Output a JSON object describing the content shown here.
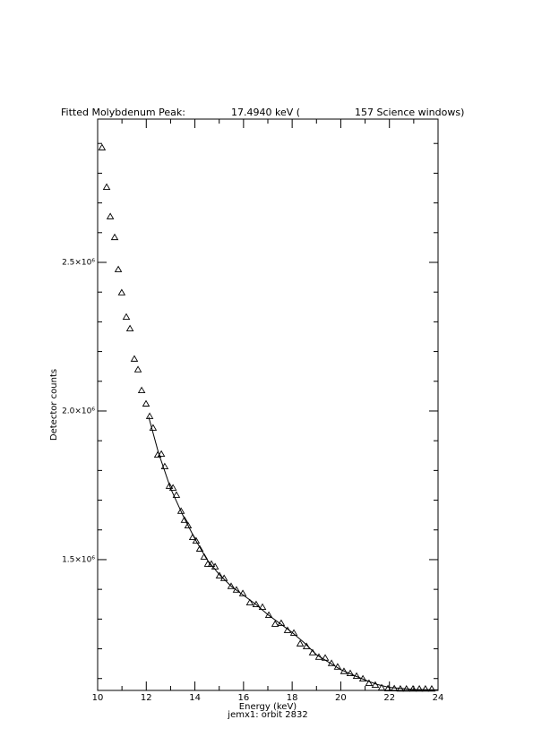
{
  "chart_data": {
    "type": "scatter",
    "title": [
      "Fitted Molybdenum Peak:",
      "17.4940 keV (",
      "157 Science windows)"
    ],
    "xlabel": "Energy (keV)",
    "ylabel": "Detector counts",
    "subtitle": "jemx1: orbit 2832",
    "xlim": [
      10,
      24
    ],
    "ylim": [
      1060000,
      2982000
    ],
    "xticks": [
      10,
      12,
      14,
      16,
      18,
      20,
      22,
      24
    ],
    "xminorticks": [
      11,
      13,
      15,
      17,
      19,
      21,
      23
    ],
    "yticks": [
      {
        "value": 1500000,
        "label": "1.5×10⁶"
      },
      {
        "value": 2000000,
        "label": "2.0×10⁶"
      },
      {
        "value": 2500000,
        "label": "2.5×10⁶"
      }
    ],
    "yminorticks": [
      1100000,
      1200000,
      1300000,
      1400000,
      1600000,
      1700000,
      1800000,
      1900000,
      2100000,
      2200000,
      2300000,
      2400000,
      2600000,
      2700000,
      2800000,
      2900000
    ],
    "series": [
      {
        "marker": "triangle",
        "color": "#000000",
        "x": [
          10.18,
          10.37,
          10.52,
          10.7,
          10.85,
          10.99,
          11.18,
          11.33,
          11.51,
          11.66,
          11.81,
          11.99,
          12.14,
          12.28,
          12.47,
          12.62,
          12.76,
          12.95,
          13.1,
          13.24,
          13.43,
          13.57,
          13.72,
          13.91,
          14.05,
          14.2,
          14.38,
          14.53,
          14.68,
          14.83,
          15.01,
          15.2,
          15.49,
          15.71,
          15.97,
          16.26,
          16.52,
          16.78,
          17.04,
          17.3,
          17.55,
          17.81,
          18.07,
          18.33,
          18.59,
          18.84,
          19.1,
          19.36,
          19.62,
          19.87,
          20.13,
          20.39,
          20.65,
          20.91,
          21.16,
          21.42,
          21.68,
          21.94,
          22.2,
          22.45,
          22.7,
          22.97,
          23.23,
          23.48,
          23.74
        ],
        "values": [
          2886000,
          2753000,
          2654000,
          2584000,
          2476000,
          2398000,
          2316000,
          2277000,
          2175000,
          2139000,
          2069000,
          2024000,
          1982000,
          1943000,
          1852000,
          1855000,
          1813000,
          1747000,
          1741000,
          1717000,
          1663000,
          1633000,
          1614000,
          1575000,
          1563000,
          1536000,
          1509000,
          1485000,
          1485000,
          1476000,
          1446000,
          1437000,
          1410000,
          1398000,
          1386000,
          1355000,
          1349000,
          1340000,
          1313000,
          1283000,
          1286000,
          1262000,
          1253000,
          1217000,
          1208000,
          1187000,
          1172000,
          1169000,
          1151000,
          1139000,
          1124000,
          1117000,
          1108000,
          1099000,
          1084000,
          1078000,
          1069000,
          1066000,
          1066000,
          1065000,
          1065000,
          1065000,
          1065000,
          1065000,
          1065000
        ]
      },
      {
        "marker": "none",
        "color": "#000000",
        "x": [
          12.1,
          12.5,
          13,
          13.5,
          14,
          14.5,
          15,
          15.5,
          16,
          16.5,
          17,
          17.5,
          18,
          18.5,
          19,
          19.5,
          20,
          20.5,
          21,
          21.5,
          22,
          23,
          24
        ],
        "values": [
          1980000,
          1860000,
          1740000,
          1650000,
          1570000,
          1500000,
          1450000,
          1410000,
          1380000,
          1350000,
          1315000,
          1285000,
          1255000,
          1220000,
          1180000,
          1155000,
          1130000,
          1112000,
          1095000,
          1080000,
          1070000,
          1063000,
          1062000
        ]
      }
    ]
  }
}
